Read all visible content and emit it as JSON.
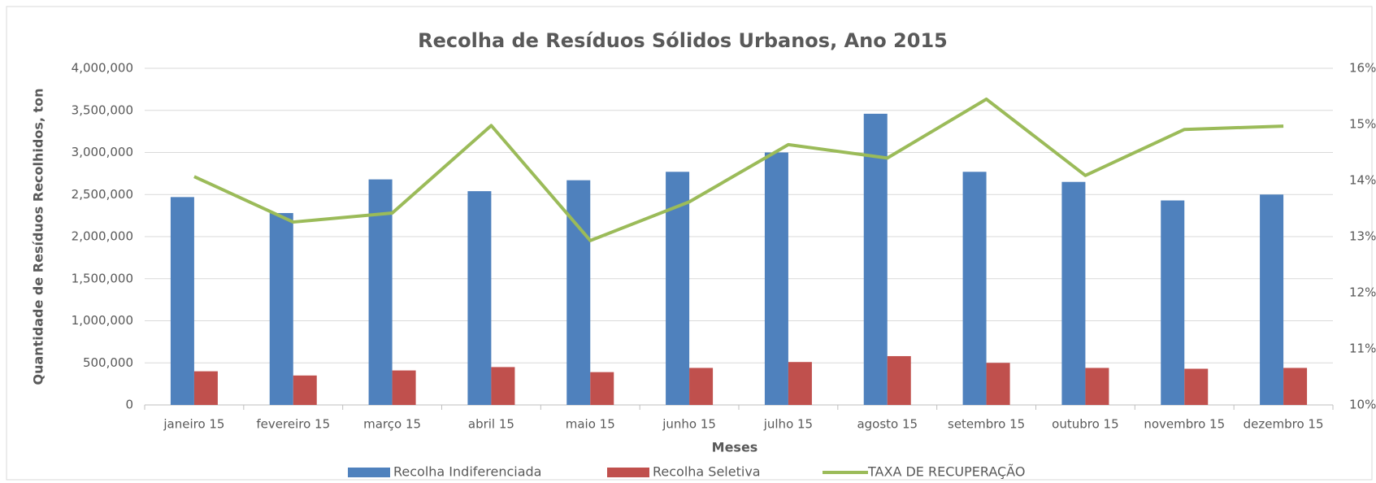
{
  "chart_data": {
    "type": "bar-line",
    "title": "Recolha de Resíduos Sólidos Urbanos, Ano 2015",
    "xlabel": "Meses",
    "ylabel": "Quantidade de Resíduos Recolhidos, ton",
    "categories": [
      "janeiro 15",
      "fevereiro 15",
      "março 15",
      "abril 15",
      "maio 15",
      "junho 15",
      "julho 15",
      "agosto 15",
      "setembro 15",
      "outubro 15",
      "novembro 15",
      "dezembro 15"
    ],
    "series": [
      {
        "name": "Recolha Indiferenciada",
        "color": "#4f81bd",
        "type": "bar",
        "axis": "y",
        "values": [
          2470000,
          2280000,
          2680000,
          2540000,
          2670000,
          2770000,
          3000000,
          3460000,
          2770000,
          2650000,
          2430000,
          2500000
        ]
      },
      {
        "name": "Recolha Seletiva",
        "color": "#c0504d",
        "type": "bar",
        "axis": "y",
        "values": [
          400000,
          350000,
          410000,
          450000,
          390000,
          440000,
          510000,
          580000,
          500000,
          440000,
          430000,
          440000
        ]
      },
      {
        "name": "TAXA DE RECUPERAÇÃO",
        "color": "#9bbb59",
        "type": "line",
        "axis": "y2",
        "values": [
          14.07,
          13.26,
          13.42,
          14.98,
          12.93,
          13.62,
          14.64,
          14.4,
          15.45,
          14.09,
          14.91,
          14.97
        ]
      }
    ],
    "ylim": [
      0,
      4000000
    ],
    "yticks": [
      0,
      {
        "value": 500000,
        "label": "500,000"
      },
      {
        "value": 1000000,
        "label": "1,000,000"
      },
      {
        "value": 1500000,
        "label": "1,500,000"
      },
      {
        "value": 2000000,
        "label": "2,000,000"
      },
      {
        "value": 2500000,
        "label": "2,500,000"
      },
      {
        "value": 3000000,
        "label": "3,000,000"
      },
      {
        "value": 3500000,
        "label": "3,500,000"
      },
      {
        "value": 4000000,
        "label": "4,000,000"
      }
    ],
    "y2lim": [
      10,
      16
    ],
    "y2ticks": [
      {
        "value": 10,
        "label": "10%"
      },
      {
        "value": 11,
        "label": "11%"
      },
      {
        "value": 12,
        "label": "12%"
      },
      {
        "value": 13,
        "label": "13%"
      },
      {
        "value": 14,
        "label": "14%"
      },
      {
        "value": 15,
        "label": "15%"
      },
      {
        "value": 16,
        "label": "16%"
      }
    ],
    "grid": true,
    "legend": "bottom"
  }
}
